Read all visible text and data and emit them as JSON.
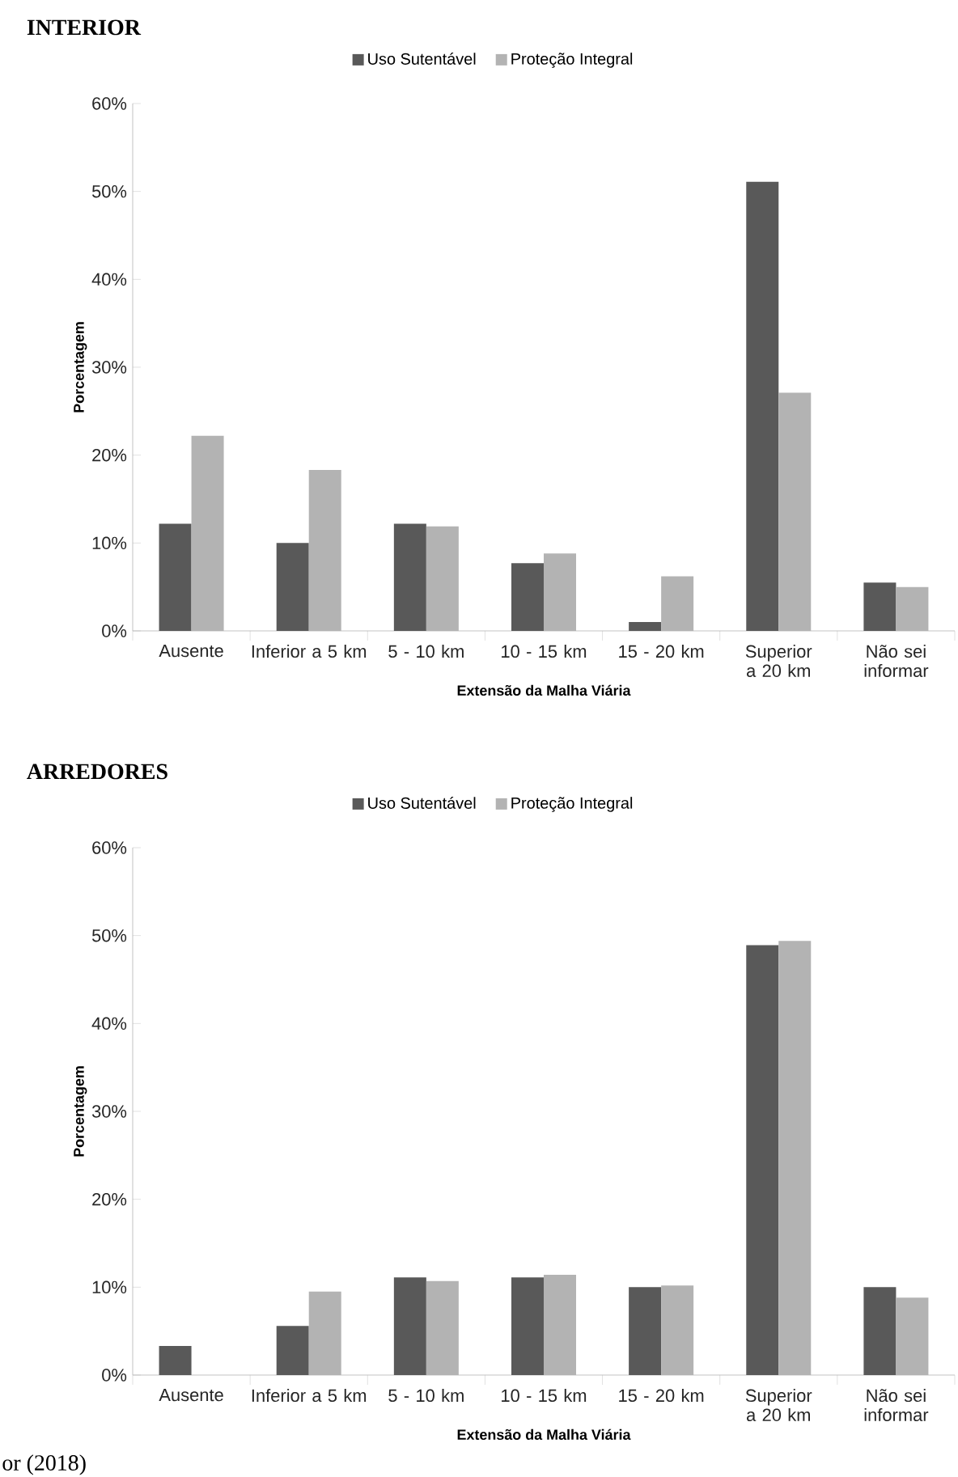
{
  "chart_data": [
    {
      "type": "bar",
      "title": "INTERIOR",
      "xlabel": "Extensão da Malha Viária",
      "ylabel": "Porcentagem",
      "categories": [
        "Ausente",
        "Inferior a 5 km",
        "5 - 10 km",
        "10 - 15 km",
        "15 - 20 km",
        "Superior a 20 km",
        "Não sei informar"
      ],
      "series": [
        {
          "name": "Uso Sutentável",
          "color": "#595959",
          "values": [
            12.2,
            10.0,
            12.2,
            7.7,
            1.0,
            51.1,
            5.5
          ]
        },
        {
          "name": "Proteção Integral",
          "color": "#b3b3b3",
          "values": [
            22.2,
            18.3,
            11.9,
            8.8,
            6.2,
            27.1,
            5.0
          ]
        }
      ],
      "ylim": [
        0,
        60
      ],
      "yticks": [
        {
          "value": 0,
          "label": "0%"
        },
        {
          "value": 10,
          "label": "10%"
        },
        {
          "value": 20,
          "label": "20%"
        },
        {
          "value": 30,
          "label": "30%"
        },
        {
          "value": 40,
          "label": "40%"
        },
        {
          "value": 50,
          "label": "50%"
        },
        {
          "value": 60,
          "label": "60%"
        }
      ],
      "legend": "top"
    },
    {
      "type": "bar",
      "title": "ARREDORES",
      "xlabel": "Extensão da Malha Viária",
      "ylabel": "Porcentagem",
      "categories": [
        "Ausente",
        "Inferior a 5 km",
        "5 - 10 km",
        "10 - 15 km",
        "15 - 20 km",
        "Superior a 20 km",
        "Não sei informar"
      ],
      "series": [
        {
          "name": "Uso Sutentável",
          "color": "#595959",
          "values": [
            3.3,
            5.6,
            11.1,
            11.1,
            10.0,
            48.9,
            10.0
          ]
        },
        {
          "name": "Proteção Integral",
          "color": "#b3b3b3",
          "values": [
            0,
            9.5,
            10.7,
            11.4,
            10.2,
            49.4,
            8.8
          ]
        }
      ],
      "ylim": [
        0,
        60
      ],
      "yticks": [
        {
          "value": 0,
          "label": "0%"
        },
        {
          "value": 10,
          "label": "10%"
        },
        {
          "value": 20,
          "label": "20%"
        },
        {
          "value": 30,
          "label": "30%"
        },
        {
          "value": 40,
          "label": "40%"
        },
        {
          "value": 50,
          "label": "50%"
        },
        {
          "value": 60,
          "label": "60%"
        }
      ],
      "legend": "top",
      "annotations": [
        "or (2018)"
      ]
    }
  ]
}
